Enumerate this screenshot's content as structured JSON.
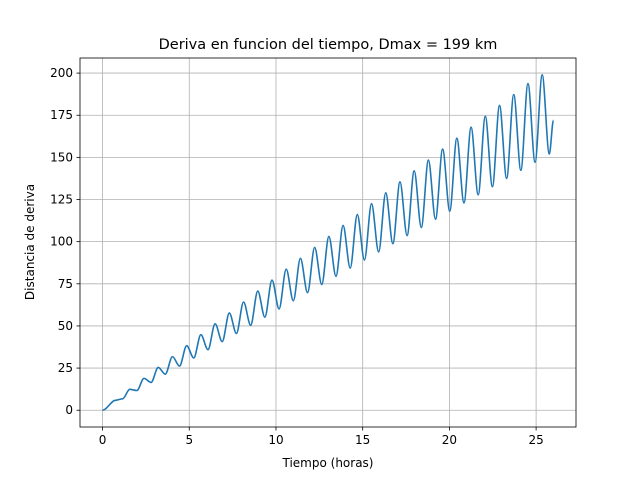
{
  "chart_data": {
    "type": "line",
    "title": "Deriva en funcion del tiempo, Dmax = 199 km",
    "x_label": "Tiempo (horas)",
    "y_label": "Distancia de deriva",
    "xlim": [
      -1.3,
      27.3
    ],
    "ylim": [
      -9.95,
      208.95
    ],
    "xticks": [
      0,
      5,
      10,
      15,
      20,
      25
    ],
    "yticks": [
      0,
      25,
      50,
      75,
      100,
      125,
      150,
      175,
      200
    ],
    "grid": true,
    "series": [
      {
        "color": "#1f77b4",
        "x": [
          0,
          0.75,
          1.16,
          1.57,
          1.98,
          2.39,
          2.8,
          3.21,
          3.62,
          4.03,
          4.44,
          4.85,
          5.26,
          5.67,
          6.08,
          6.49,
          6.9,
          7.31,
          7.72,
          8.13,
          8.54,
          8.95,
          9.36,
          9.77,
          10.18,
          10.59,
          11.0,
          11.41,
          11.82,
          12.23,
          12.64,
          13.05,
          13.46,
          13.87,
          14.28,
          14.69,
          15.1,
          15.51,
          15.92,
          16.33,
          16.74,
          17.15,
          17.56,
          17.97,
          18.38,
          18.79,
          19.2,
          19.61,
          20.02,
          20.43,
          20.84,
          21.25,
          21.66,
          22.07,
          22.48,
          22.89,
          23.3,
          23.71,
          24.12,
          24.53,
          24.94,
          25.35,
          25.76,
          26.0
        ],
        "values": [
          0,
          5.9,
          6.8,
          12.4,
          11.7,
          18.9,
          16.5,
          25.4,
          21.4,
          31.8,
          26.2,
          38.3,
          31.0,
          44.8,
          35.9,
          51.3,
          40.7,
          57.7,
          45.5,
          64.2,
          50.4,
          70.7,
          55.2,
          77.2,
          60.1,
          83.7,
          64.9,
          90.1,
          69.7,
          96.6,
          74.6,
          103.1,
          79.4,
          109.6,
          84.3,
          116.1,
          89.1,
          122.5,
          93.9,
          129.0,
          98.8,
          135.5,
          103.6,
          142.0,
          108.4,
          148.4,
          113.3,
          154.9,
          118.1,
          161.4,
          123.0,
          167.9,
          127.8,
          174.4,
          132.6,
          180.8,
          137.5,
          187.3,
          142.3,
          193.8,
          147.1,
          199.0,
          152.0,
          172
        ]
      }
    ]
  }
}
